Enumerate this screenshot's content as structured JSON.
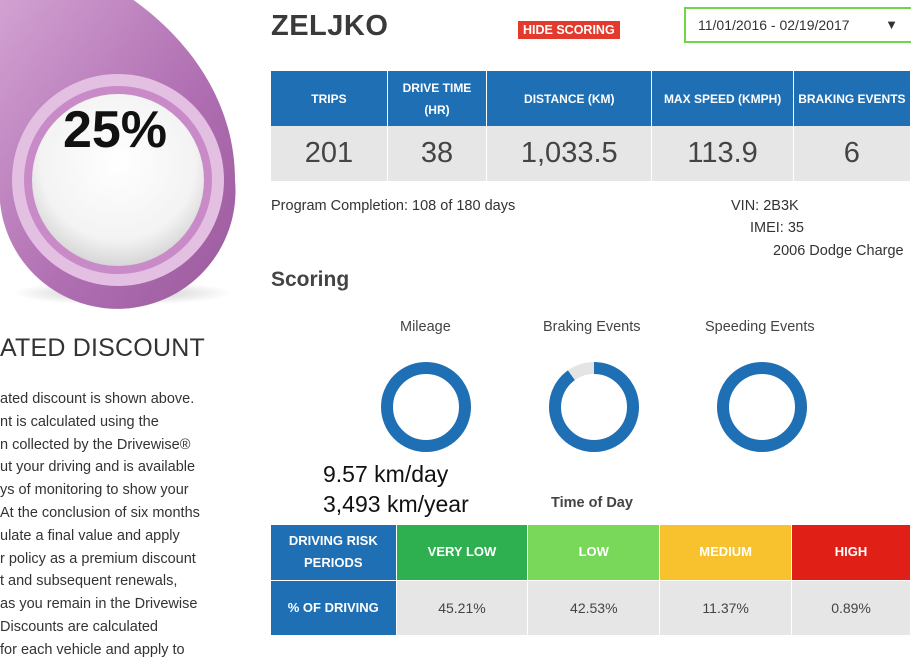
{
  "discount": {
    "value": "25%",
    "heading": "ATED DISCOUNT",
    "paragraph_lines": [
      "ated discount is shown above.",
      "nt is calculated using the",
      "n collected by the Drivewise®",
      "ut your driving and is available",
      "ys of monitoring to show your",
      "At the conclusion of six months",
      "ulate a final value and apply",
      "r policy as a premium discount",
      "t and subsequent renewals,",
      "as you remain in the Drivewise",
      "Discounts are calculated",
      "for each vehicle and apply to"
    ]
  },
  "header": {
    "name": "ZELJKO",
    "hide_scoring_label": "HIDE SCORING",
    "date_range": "11/01/2016 - 02/19/2017"
  },
  "stats": {
    "headers": [
      "TRIPS",
      "DRIVE TIME (HR)",
      "DISTANCE (KM)",
      "MAX SPEED (KMPH)",
      "BRAKING EVENTS"
    ],
    "values": [
      "201",
      "38",
      "1,033.5",
      "113.9",
      "6"
    ]
  },
  "completion": "Program Completion: 108 of 180 days",
  "vehicle": {
    "vin": "VIN: 2B3K",
    "imei": "IMEI: 35",
    "model": "2006 Dodge Charge"
  },
  "scoring": {
    "heading": "Scoring",
    "charts": [
      {
        "label": "Mileage",
        "fraction": 1.0
      },
      {
        "label": "Braking Events",
        "fraction": 0.9
      },
      {
        "label": "Speeding Events",
        "fraction": 1.0
      }
    ],
    "mileage_day": "9.57 km/day",
    "mileage_year": "3,493 km/year",
    "time_of_day_label": "Time of Day"
  },
  "risk": {
    "row1_label": "DRIVING RISK PERIODS",
    "row2_label": "% OF DRIVING",
    "periods": [
      {
        "label": "VERY LOW",
        "value": "45.21%",
        "color": "#2eb050"
      },
      {
        "label": "LOW",
        "value": "42.53%",
        "color": "#79d85a"
      },
      {
        "label": "MEDIUM",
        "value": "11.37%",
        "color": "#f8c22e"
      },
      {
        "label": "HIGH",
        "value": "0.89%",
        "color": "#e01f17"
      }
    ]
  },
  "colors": {
    "primary_blue": "#1f6fb5",
    "donut_blue": "#1f6fb5",
    "donut_track": "#e4e4e4",
    "hide_button": "#e23b2e",
    "select_border": "#6fd64a",
    "badge_purple": "#b573b7"
  }
}
